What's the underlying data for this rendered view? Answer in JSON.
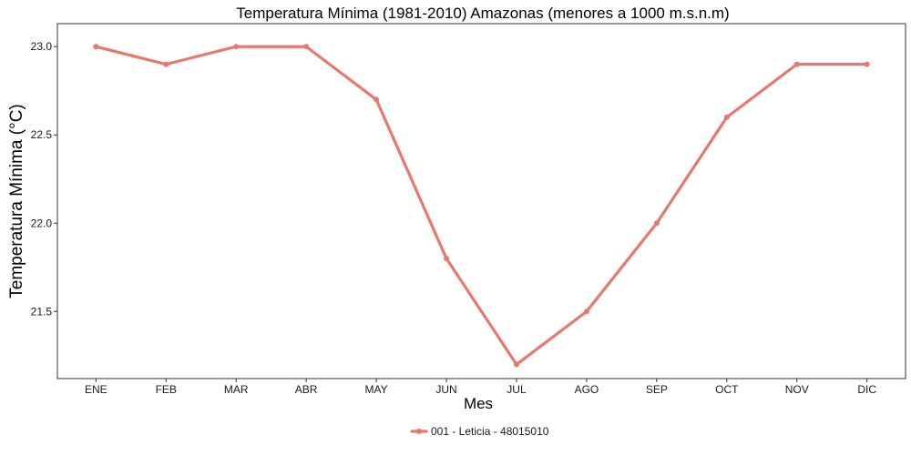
{
  "chart_data": {
    "type": "line",
    "title": "Temperatura Mínima (1981-2010) Amazonas (menores a 1000 m.s.n.m)",
    "xlabel": "Mes",
    "ylabel": "Temperatura Mínima (°C)",
    "categories": [
      "ENE",
      "FEB",
      "MAR",
      "ABR",
      "MAY",
      "JUN",
      "JUL",
      "AGO",
      "SEP",
      "OCT",
      "NOV",
      "DIC"
    ],
    "series": [
      {
        "name": "001 - Leticia - 48015010",
        "color": "#E8786E",
        "values": [
          23.0,
          22.9,
          23.0,
          23.0,
          22.7,
          21.8,
          21.2,
          21.5,
          22.0,
          22.6,
          22.9,
          22.9
        ]
      }
    ],
    "yticks": [
      21.5,
      22.0,
      22.5,
      23.0
    ],
    "ytick_labels": [
      "21.5",
      "22.0",
      "22.5",
      "23.0"
    ],
    "ylim": [
      21.12,
      23.13
    ],
    "grid": false,
    "legend_position": "bottom"
  }
}
